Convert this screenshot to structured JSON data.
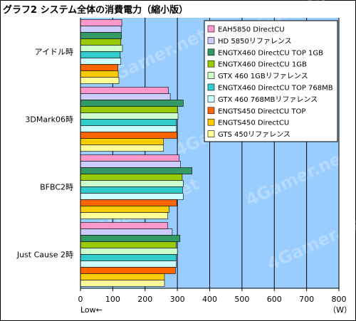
{
  "chart_data": {
    "type": "bar",
    "orientation": "horizontal",
    "title": "グラフ2  システム全体の消費電力（縮小版）",
    "categories": [
      "アイドル時",
      "3DMark06時",
      "BFBC2時",
      "Just Cause 2時"
    ],
    "series": [
      {
        "name": "EAH5850 DirectCU",
        "color": "#ff99cc",
        "values": [
          128,
          272,
          305,
          270
        ]
      },
      {
        "name": "HD 5850リファレンス",
        "color": "#ccccff",
        "values": [
          126,
          278,
          310,
          284
        ]
      },
      {
        "name": "ENGTX460 DirectCU TOP 1GB",
        "color": "#339966",
        "values": [
          127,
          318,
          345,
          308
        ]
      },
      {
        "name": "ENGTX460 DirectCU 1GB",
        "color": "#99cc00",
        "values": [
          125,
          300,
          315,
          296
        ]
      },
      {
        "name": "GTX 460 1GBリファレンス",
        "color": "#ccffcc",
        "values": [
          130,
          302,
          318,
          300
        ]
      },
      {
        "name": "ENGTX460 DirectCU TOP 768MB",
        "color": "#33cccc",
        "values": [
          123,
          296,
          316,
          296
        ]
      },
      {
        "name": "GTX 460 768MBリファレンス",
        "color": "#ccffff",
        "values": [
          125,
          297,
          318,
          297
        ]
      },
      {
        "name": "ENGTS450 DirectCU TOP",
        "color": "#ff6600",
        "values": [
          116,
          299,
          298,
          294
        ]
      },
      {
        "name": "ENGTS450 DirectCU",
        "color": "#ffcc00",
        "values": [
          117,
          257,
          274,
          260
        ]
      },
      {
        "name": "GTS 450リファレンス",
        "color": "#ffff99",
        "values": [
          119,
          257,
          270,
          260
        ]
      }
    ],
    "xlim": [
      0,
      800
    ],
    "xticks": [
      0,
      100,
      200,
      300,
      400,
      500,
      600,
      700,
      800
    ],
    "xlabel_left": "Low←",
    "xlabel_right": "（W）",
    "grid": true,
    "legend_position": "top-right",
    "watermark": "4Gamer.net",
    "colors": {
      "plot_background": "#99ccff",
      "gridline": "#000000"
    }
  }
}
